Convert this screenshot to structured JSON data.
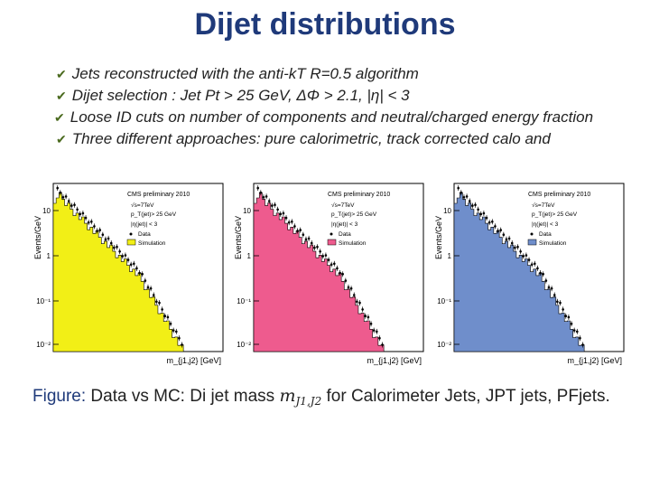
{
  "slide": {
    "title": "Dijet distributions",
    "bullets": [
      "Jets reconstructed with the anti-kT R=0.5 algorithm",
      "Dijet selection : Jet Pt > 25 GeV, ΔΦ > 2.1, |η| < 3",
      "Loose ID cuts on number of components and neutral/charged energy fraction",
      "Three different approaches: pure calorimetric, track corrected calo and"
    ],
    "caption": {
      "label": "Figure:",
      "text_before": "Data vs MC: Di jet mass",
      "math": "m",
      "math_sub": "J1,J2",
      "text_after": "for Calorimeter Jets, JPT jets, PFjets."
    }
  },
  "panels": [
    {
      "ylabel": "Events/GeV",
      "xlabel": "m_{j1,j2} [GeV]",
      "header": "CMS preliminary 2010",
      "energy": "√s=7TeV",
      "cut": "p_T(jet)> 25 GeV",
      "eta": "|η(jet)| < 3",
      "legend_data": "Data",
      "legend_sim": "Simulation",
      "sim_color": "#f2ef16",
      "y_ticks": [
        "10",
        "1",
        "10⁻¹",
        "10⁻²"
      ]
    },
    {
      "ylabel": "Events/GeV",
      "xlabel": "m_{j1,j2} [GeV]",
      "header": "CMS preliminary 2010",
      "energy": "√s=7TeV",
      "cut": "p_T(jet)> 25 GeV",
      "eta": "|η(jet)| < 3",
      "legend_data": "Data",
      "legend_sim": "Simulation",
      "sim_color": "#ee5b8e",
      "y_ticks": [
        "10",
        "1",
        "10⁻¹",
        "10⁻²"
      ]
    },
    {
      "ylabel": "Events/GeV",
      "xlabel": "m_{j1,j2} [GeV]",
      "header": "CMS preliminary 2010",
      "energy": "√s=7TeV",
      "cut": "p_T(jet)> 25 GeV",
      "eta": "|η(jet)| < 3",
      "legend_data": "Data",
      "legend_sim": "Simulation",
      "sim_color": "#6f8ecb",
      "y_ticks": [
        "10",
        "1",
        "10⁻¹",
        "10⁻²"
      ]
    }
  ]
}
